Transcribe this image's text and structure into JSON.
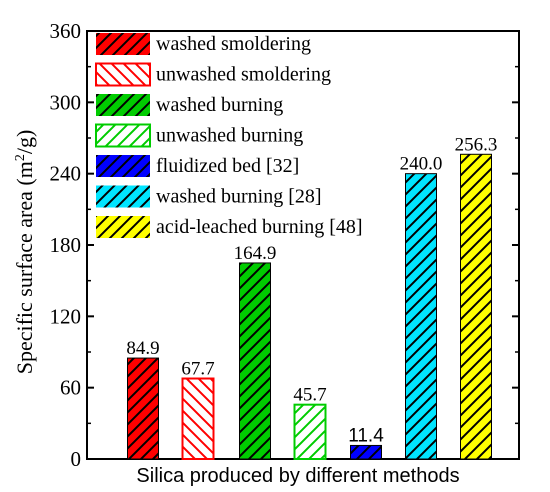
{
  "chart_data": {
    "type": "bar",
    "xlabel": "Silica produced by different methods",
    "ylabel": "Specific surface area (m",
    "ylabel_sup": "2",
    "ylabel_end": "/g)",
    "ylim": [
      0,
      360
    ],
    "yticks": [
      "0",
      "60",
      "120",
      "180",
      "240",
      "300",
      "360"
    ],
    "grid": false,
    "legend_position": "top-left",
    "series": [
      {
        "name": "washed smoldering",
        "value": 84.9,
        "label": "84.9",
        "color": "#ff0000",
        "hatch": "forward",
        "filled": true
      },
      {
        "name": "unwashed smoldering",
        "value": 67.7,
        "label": "67.7",
        "color": "#ff0000",
        "hatch": "backward",
        "filled": false
      },
      {
        "name": "washed burning",
        "value": 164.9,
        "label": "164.9",
        "color": "#00cc00",
        "hatch": "forward",
        "filled": true
      },
      {
        "name": "unwashed burning",
        "value": 45.7,
        "label": "45.7",
        "color": "#00cc00",
        "hatch": "forward",
        "filled": false
      },
      {
        "name": "fluidized bed [32]",
        "value": 11.4,
        "label": "11.4",
        "color": "#0000ff",
        "hatch": "forward",
        "filled": true
      },
      {
        "name": " washed burning [28]",
        "value": 240.0,
        "label": "240.0",
        "color": "#00e5ff",
        "hatch": "forward",
        "filled": true
      },
      {
        "name": "acid-leached burning [48]",
        "value": 256.3,
        "label": "256.3",
        "color": "#ffff00",
        "hatch": "forward",
        "filled": true
      }
    ]
  }
}
